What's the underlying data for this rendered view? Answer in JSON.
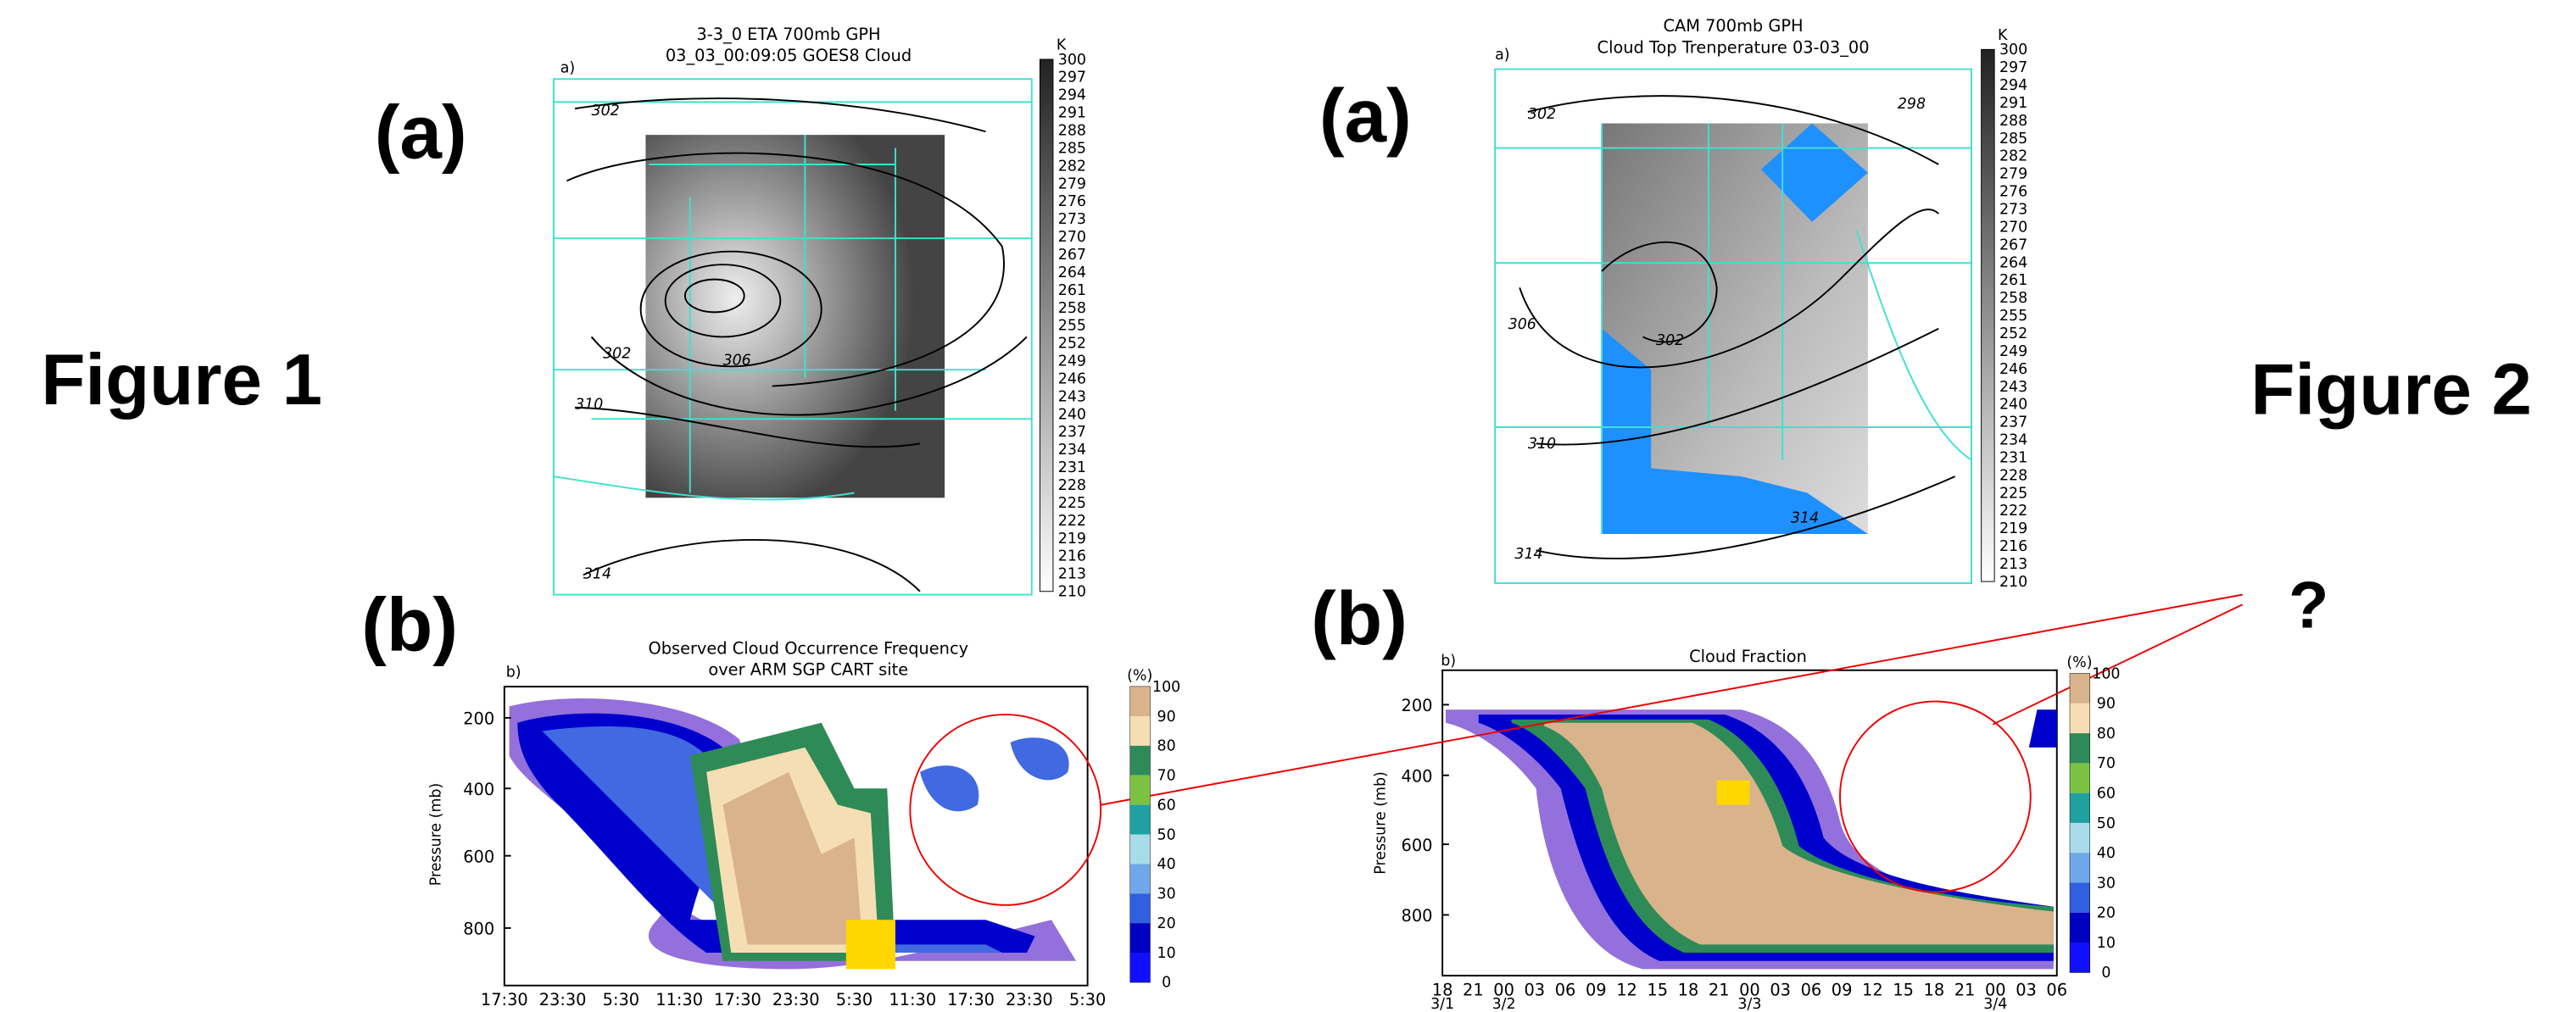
{
  "labels": {
    "figure1": "Figure 1",
    "figure2": "Figure 2",
    "question": "?"
  },
  "figure1": {
    "a": {
      "panel": "(a)",
      "sub": "a)",
      "title": [
        "3-3_0 ETA 700mb GPH",
        "03_03_00:09:05 GOES8 Cloud"
      ],
      "contours": [
        "302",
        "306",
        "302",
        "310",
        "314"
      ],
      "colorbar_unit": "K",
      "colorbar_ticks": [
        300,
        297,
        294,
        291,
        288,
        285,
        282,
        279,
        276,
        273,
        270,
        267,
        264,
        261,
        258,
        255,
        252,
        249,
        246,
        243,
        240,
        237,
        234,
        231,
        228,
        225,
        222,
        219,
        216,
        213,
        210
      ]
    },
    "b": {
      "panel": "(b)",
      "sub": "b)",
      "title": [
        "Observed Cloud Occurrence Frequency",
        "over ARM SGP CART site"
      ],
      "y_label": "Pressure (mb)",
      "y_ticks": [
        200,
        400,
        600,
        800
      ],
      "x_ticks": [
        "17:30",
        "23:30",
        "5:30",
        "11:30",
        "17:30",
        "23:30",
        "5:30",
        "11:30",
        "17:30",
        "23:30",
        "5:30"
      ],
      "colorbar_unit": "(%)",
      "colorbar_ticks": [
        100,
        90,
        80,
        70,
        60,
        50,
        40,
        30,
        20,
        10,
        0
      ]
    }
  },
  "figure2": {
    "a": {
      "panel": "(a)",
      "sub": "a)",
      "title": [
        "CAM 700mb GPH",
        "Cloud Top Trenperature 03-03_00"
      ],
      "contours": [
        "302",
        "298",
        "306",
        "302",
        "310",
        "314",
        "314"
      ],
      "colorbar_unit": "K",
      "colorbar_ticks": [
        300,
        297,
        294,
        291,
        288,
        285,
        282,
        279,
        276,
        273,
        270,
        267,
        264,
        261,
        258,
        255,
        252,
        249,
        246,
        243,
        240,
        237,
        234,
        231,
        228,
        225,
        222,
        219,
        216,
        213,
        210
      ]
    },
    "b": {
      "panel": "(b)",
      "sub": "b)",
      "title": [
        "Cloud Fraction"
      ],
      "y_label": "Pressure (mb)",
      "y_ticks": [
        200,
        400,
        600,
        800
      ],
      "x_ticks": [
        "18",
        "21",
        "00",
        "03",
        "06",
        "09",
        "12",
        "15",
        "18",
        "21",
        "00",
        "03",
        "06",
        "09",
        "12",
        "15",
        "18",
        "21",
        "00",
        "03",
        "06"
      ],
      "x_dates": [
        "3/1",
        "3/2",
        "3/3",
        "3/4"
      ],
      "colorbar_unit": "(%)",
      "colorbar_ticks": [
        100,
        90,
        80,
        70,
        60,
        50,
        40,
        30,
        20,
        10,
        0
      ]
    }
  }
}
